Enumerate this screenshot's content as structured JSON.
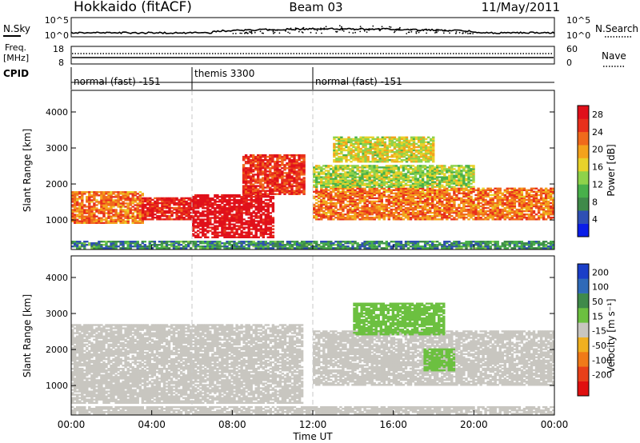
{
  "header": {
    "station": "Hokkaido (fitACF)",
    "beam": "Beam 03",
    "date": "11/May/2011"
  },
  "small_panels": {
    "nsky_label": "N.Sky",
    "nsearch_label": "N.Search",
    "nsky_ticks": [
      "10^5",
      "10^0"
    ],
    "nsearch_ticks": [
      "10^5",
      "10^0"
    ],
    "freq_label_1": "Freq.",
    "freq_label_2": "[MHz]",
    "freq_ticks": [
      "18",
      "8"
    ],
    "nave_label": "Nave",
    "nave_ticks": [
      "60",
      "0"
    ],
    "cpid_label": "CPID"
  },
  "cpid_segments": [
    {
      "label": "normal (fast) -151",
      "start_hour": 0,
      "end_hour": 6
    },
    {
      "label": "themis 3300",
      "start_hour": 6,
      "end_hour": 12
    },
    {
      "label": "normal (fast) -151",
      "start_hour": 12,
      "end_hour": 24
    }
  ],
  "axes": {
    "xlabel": "Time UT",
    "x_ticks": [
      "00:00",
      "04:00",
      "08:00",
      "12:00",
      "16:00",
      "20:00",
      "00:00"
    ],
    "x_range_hours": [
      0,
      24
    ],
    "ylabel": "Slant Range [km]",
    "y_ticks": [
      "1000",
      "2000",
      "3000",
      "4000"
    ],
    "y_range_km": [
      180,
      4600
    ]
  },
  "colorbars": {
    "power": {
      "label": "Power [dB]",
      "ticks": [
        "4",
        "8",
        "12",
        "16",
        "20",
        "24",
        "28"
      ],
      "colors": [
        "#0a1de8",
        "#2f4fb4",
        "#3f8a4a",
        "#48b04a",
        "#8ed24a",
        "#e8d22a",
        "#f4a21c",
        "#f06a1c",
        "#e8301c",
        "#e0101a"
      ]
    },
    "velocity": {
      "label": "Velocity [m s⁻¹]",
      "ticks": [
        "200",
        "100",
        "50",
        "15",
        "-15",
        "-50",
        "-100",
        "-200"
      ],
      "colors": [
        "#1a3ec8",
        "#2f6ab8",
        "#3f8a4a",
        "#6cc040",
        "#c8c6c0",
        "#f0b020",
        "#f07a18",
        "#e84018",
        "#e01010"
      ]
    }
  },
  "chart_data": [
    {
      "type": "heatmap",
      "title": "Power",
      "quantity": "Power [dB]",
      "xlabel": "Time UT",
      "ylabel": "Slant Range [km]",
      "xlim_hours": [
        0,
        24
      ],
      "ylim_km": [
        180,
        4600
      ],
      "clim": [
        0,
        30
      ],
      "bands": [
        {
          "t_start": 0.0,
          "t_end": 3.5,
          "r_min": 900,
          "r_max": 1800,
          "power_db": 22
        },
        {
          "t_start": 3.5,
          "t_end": 6.0,
          "r_min": 1000,
          "r_max": 1600,
          "power_db": 27
        },
        {
          "t_start": 6.0,
          "t_end": 10.0,
          "r_min": 500,
          "r_max": 1700,
          "power_db": 30
        },
        {
          "t_start": 8.5,
          "t_end": 11.5,
          "r_min": 1700,
          "r_max": 2800,
          "power_db": 26
        },
        {
          "t_start": 12.0,
          "t_end": 24.0,
          "r_min": 1000,
          "r_max": 1900,
          "power_db": 22
        },
        {
          "t_start": 13.0,
          "t_end": 18.0,
          "r_min": 2600,
          "r_max": 3300,
          "power_db": 16
        },
        {
          "t_start": 12.0,
          "t_end": 20.0,
          "r_min": 1900,
          "r_max": 2500,
          "power_db": 14
        },
        {
          "t_start": 0.0,
          "t_end": 24.0,
          "r_min": 200,
          "r_max": 400,
          "power_db": 8
        }
      ]
    },
    {
      "type": "heatmap",
      "title": "Velocity",
      "quantity": "Velocity [m s-1]",
      "xlabel": "Time UT",
      "ylabel": "Slant Range [km]",
      "xlim_hours": [
        0,
        24
      ],
      "ylim_km": [
        180,
        4600
      ],
      "clim": [
        -200,
        200
      ],
      "bands": [
        {
          "t_start": 0.0,
          "t_end": 11.5,
          "r_min": 500,
          "r_max": 2700,
          "velocity": 0
        },
        {
          "t_start": 12.0,
          "t_end": 24.0,
          "r_min": 1000,
          "r_max": 2500,
          "velocity": 0
        },
        {
          "t_start": 14.0,
          "t_end": 18.5,
          "r_min": 2400,
          "r_max": 3300,
          "velocity": 30
        },
        {
          "t_start": 17.5,
          "t_end": 19.0,
          "r_min": 1400,
          "r_max": 2000,
          "velocity": 40
        },
        {
          "t_start": 0.0,
          "t_end": 24.0,
          "r_min": 200,
          "r_max": 400,
          "velocity": 0
        }
      ]
    }
  ]
}
